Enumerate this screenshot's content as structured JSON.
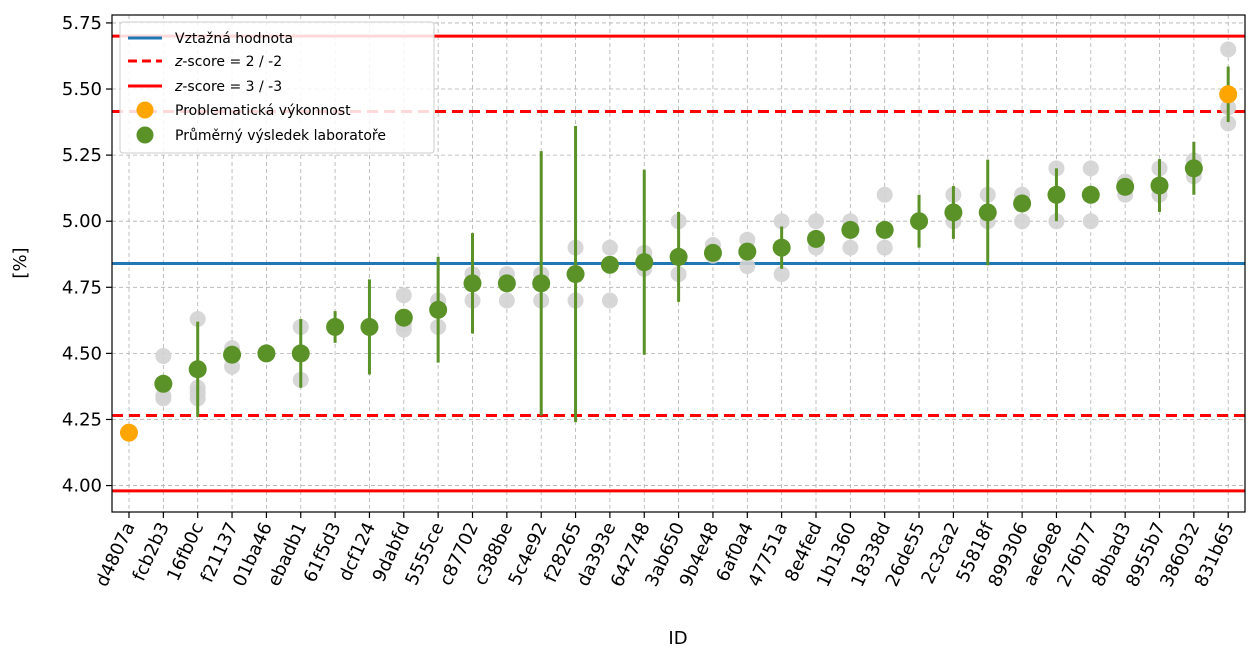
{
  "chart_data": {
    "type": "scatter",
    "xlabel": "ID",
    "ylabel": "[%]",
    "ylim": [
      3.9,
      5.78
    ],
    "yticks": [
      "4.00",
      "4.25",
      "4.50",
      "4.75",
      "5.00",
      "5.25",
      "5.50",
      "5.75"
    ],
    "grid": true,
    "legend_position": "top-left",
    "reference_value": 4.84,
    "z2_limits": [
      4.265,
      5.415
    ],
    "z3_limits": [
      3.98,
      5.7
    ],
    "legend": {
      "reference": "Vztažná hodnota",
      "z2": "z-score = 2 / -2",
      "z3": "z-score = 3 / -3",
      "z_prefix": "z",
      "z2_suffix": "-score = 2 / -2",
      "z3_suffix": "-score = 3 / -3",
      "problem": "Problematická výkonnost",
      "mean": "Průměrný výsledek laboratoře"
    },
    "colors": {
      "reference": "#1f77b4",
      "limits": "#ff0000",
      "problem": "#ffa500",
      "mean": "#5a9228",
      "replicate": "#d3d3d3",
      "grid": "#b0b0b0"
    },
    "labs": [
      {
        "id": "d4807a",
        "mean": 4.2,
        "err": 0,
        "reps": [
          4.2
        ],
        "problem": true
      },
      {
        "id": "fcb2b3",
        "mean": 4.385,
        "err": 0,
        "reps": [
          4.33,
          4.34,
          4.49
        ],
        "problem": false
      },
      {
        "id": "16fb0c",
        "mean": 4.44,
        "err": 0.18,
        "reps": [
          4.33,
          4.35,
          4.37,
          4.63
        ],
        "problem": false
      },
      {
        "id": "f21137",
        "mean": 4.495,
        "err": 0,
        "reps": [
          4.45,
          4.52
        ],
        "problem": false
      },
      {
        "id": "01ba46",
        "mean": 4.5,
        "err": 0,
        "reps": [
          4.5
        ],
        "problem": false
      },
      {
        "id": "ebadb1",
        "mean": 4.5,
        "err": 0.13,
        "reps": [
          4.4,
          4.6
        ],
        "problem": false
      },
      {
        "id": "61f5d3",
        "mean": 4.6,
        "err": 0.06,
        "reps": [
          4.6
        ],
        "problem": false
      },
      {
        "id": "dcf124",
        "mean": 4.6,
        "err": 0.18,
        "reps": [
          4.6
        ],
        "problem": false
      },
      {
        "id": "9dabfd",
        "mean": 4.635,
        "err": 0,
        "reps": [
          4.59,
          4.61,
          4.72
        ],
        "problem": false
      },
      {
        "id": "5555ce",
        "mean": 4.665,
        "err": 0.2,
        "reps": [
          4.6,
          4.7
        ],
        "problem": false
      },
      {
        "id": "c87702",
        "mean": 4.765,
        "err": 0.19,
        "reps": [
          4.7,
          4.8
        ],
        "problem": false
      },
      {
        "id": "c388be",
        "mean": 4.765,
        "err": 0,
        "reps": [
          4.7,
          4.8
        ],
        "problem": false
      },
      {
        "id": "5c4e92",
        "mean": 4.765,
        "err": 0.5,
        "reps": [
          4.7,
          4.8
        ],
        "problem": false
      },
      {
        "id": "f28265",
        "mean": 4.8,
        "err": 0.56,
        "reps": [
          4.7,
          4.9
        ],
        "problem": false
      },
      {
        "id": "da393e",
        "mean": 4.835,
        "err": 0,
        "reps": [
          4.7,
          4.9
        ],
        "problem": false
      },
      {
        "id": "642748",
        "mean": 4.845,
        "err": 0.35,
        "reps": [
          4.82,
          4.84,
          4.88
        ],
        "problem": false
      },
      {
        "id": "3ab650",
        "mean": 4.865,
        "err": 0.17,
        "reps": [
          4.8,
          5.0
        ],
        "problem": false
      },
      {
        "id": "9b4e48",
        "mean": 4.88,
        "err": 0,
        "reps": [
          4.87,
          4.91
        ],
        "problem": false
      },
      {
        "id": "6af0a4",
        "mean": 4.885,
        "err": 0,
        "reps": [
          4.83,
          4.93
        ],
        "problem": false
      },
      {
        "id": "47751a",
        "mean": 4.9,
        "err": 0.08,
        "reps": [
          4.8,
          4.9,
          5.0
        ],
        "problem": false
      },
      {
        "id": "8e4fed",
        "mean": 4.933,
        "err": 0,
        "reps": [
          4.9,
          5.0
        ],
        "problem": false
      },
      {
        "id": "1b1360",
        "mean": 4.967,
        "err": 0,
        "reps": [
          4.9,
          5.0
        ],
        "problem": false
      },
      {
        "id": "18338d",
        "mean": 4.967,
        "err": 0,
        "reps": [
          4.9,
          5.1
        ],
        "problem": false
      },
      {
        "id": "26de55",
        "mean": 5.0,
        "err": 0.1,
        "reps": [
          5.0
        ],
        "problem": false
      },
      {
        "id": "2c3ca2",
        "mean": 5.033,
        "err": 0.1,
        "reps": [
          5.0,
          5.1
        ],
        "problem": false
      },
      {
        "id": "55818f",
        "mean": 5.033,
        "err": 0.2,
        "reps": [
          5.0,
          5.1
        ],
        "problem": false
      },
      {
        "id": "899306",
        "mean": 5.067,
        "err": 0,
        "reps": [
          5.0,
          5.1
        ],
        "problem": false
      },
      {
        "id": "ae69e8",
        "mean": 5.1,
        "err": 0.1,
        "reps": [
          5.0,
          5.2
        ],
        "problem": false
      },
      {
        "id": "276b77",
        "mean": 5.1,
        "err": 0,
        "reps": [
          5.0,
          5.2
        ],
        "problem": false
      },
      {
        "id": "8bbad3",
        "mean": 5.13,
        "err": 0,
        "reps": [
          5.1,
          5.15
        ],
        "problem": false
      },
      {
        "id": "8955b7",
        "mean": 5.135,
        "err": 0.1,
        "reps": [
          5.1,
          5.2
        ],
        "problem": false
      },
      {
        "id": "386032",
        "mean": 5.2,
        "err": 0.1,
        "reps": [
          5.17,
          5.23
        ],
        "problem": false
      },
      {
        "id": "831b65",
        "mean": 5.48,
        "err": 0.105,
        "reps": [
          5.37,
          5.43,
          5.65
        ],
        "problem": true
      }
    ]
  }
}
